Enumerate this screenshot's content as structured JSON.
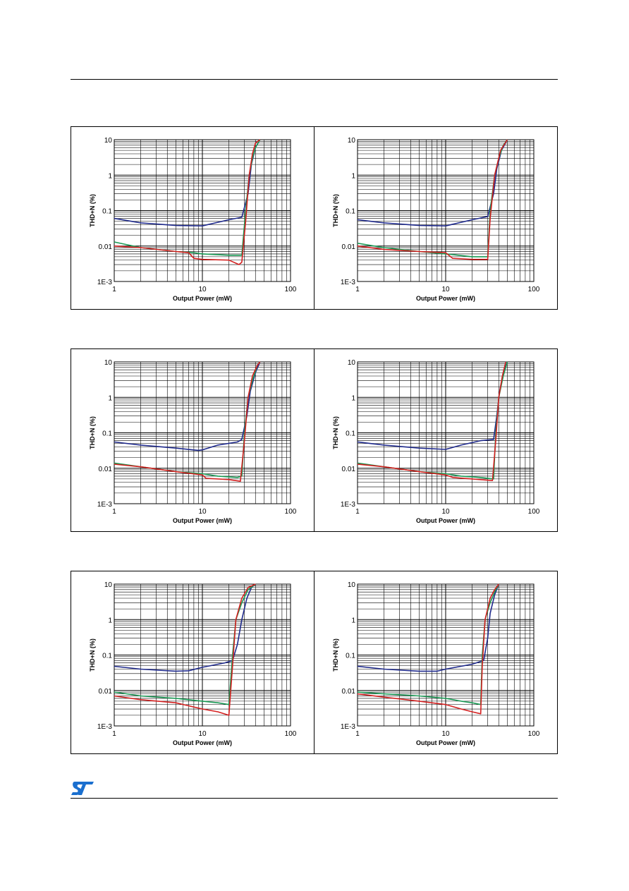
{
  "chart_data": [
    {
      "type": "line",
      "xlabel": "Output Power (mW)",
      "ylabel": "THD+N (%)",
      "xscale": "log",
      "yscale": "log",
      "xlim": [
        1,
        100
      ],
      "ylim": [
        0.001,
        10
      ],
      "x_ticks": [
        "1",
        "10",
        "100"
      ],
      "y_ticks": [
        "1E-3",
        "0.01",
        "0.1",
        "1",
        "10"
      ],
      "grid": true,
      "series": [
        {
          "color": "#1f2a8c",
          "points": [
            [
              1,
              0.06
            ],
            [
              2,
              0.045
            ],
            [
              5,
              0.038
            ],
            [
              10,
              0.037
            ],
            [
              20,
              0.055
            ],
            [
              28,
              0.065
            ],
            [
              33,
              0.3
            ],
            [
              36,
              2
            ],
            [
              40,
              6
            ],
            [
              45,
              10
            ]
          ]
        },
        {
          "color": "#1a9a55",
          "points": [
            [
              1,
              0.013
            ],
            [
              2,
              0.009
            ],
            [
              5,
              0.007
            ],
            [
              8,
              0.0065
            ],
            [
              10,
              0.006
            ],
            [
              20,
              0.0055
            ],
            [
              28,
              0.0055
            ],
            [
              31,
              0.1
            ],
            [
              34,
              1
            ],
            [
              37,
              3
            ],
            [
              40,
              6
            ],
            [
              45,
              10
            ]
          ]
        },
        {
          "color": "#d42020",
          "points": [
            [
              1,
              0.01
            ],
            [
              2,
              0.009
            ],
            [
              5,
              0.007
            ],
            [
              7,
              0.0065
            ],
            [
              8,
              0.0045
            ],
            [
              10,
              0.0042
            ],
            [
              20,
              0.004
            ],
            [
              26,
              0.003
            ],
            [
              28,
              0.0035
            ],
            [
              31,
              0.05
            ],
            [
              34,
              1
            ],
            [
              37,
              4
            ],
            [
              40,
              8
            ],
            [
              45,
              10
            ]
          ]
        }
      ]
    },
    {
      "type": "line",
      "xlabel": "Output Power (mW)",
      "ylabel": "THD+N (%)",
      "xscale": "log",
      "yscale": "log",
      "xlim": [
        1,
        100
      ],
      "ylim": [
        0.001,
        10
      ],
      "x_ticks": [
        "1",
        "10",
        "100"
      ],
      "y_ticks": [
        "1E-3",
        "0.01",
        "0.1",
        "1",
        "10"
      ],
      "grid": true,
      "series": [
        {
          "color": "#1f2a8c",
          "points": [
            [
              1,
              0.055
            ],
            [
              2,
              0.045
            ],
            [
              5,
              0.038
            ],
            [
              10,
              0.037
            ],
            [
              20,
              0.055
            ],
            [
              30,
              0.068
            ],
            [
              35,
              0.3
            ],
            [
              38,
              1.5
            ],
            [
              43,
              5
            ],
            [
              50,
              10
            ]
          ]
        },
        {
          "color": "#1a9a55",
          "points": [
            [
              1,
              0.012
            ],
            [
              2,
              0.009
            ],
            [
              5,
              0.007
            ],
            [
              10,
              0.006
            ],
            [
              20,
              0.005
            ],
            [
              30,
              0.005
            ],
            [
              32,
              0.1
            ],
            [
              36,
              1
            ],
            [
              40,
              3
            ],
            [
              45,
              7
            ],
            [
              50,
              10
            ]
          ]
        },
        {
          "color": "#d42020",
          "points": [
            [
              1,
              0.01
            ],
            [
              2,
              0.008
            ],
            [
              5,
              0.007
            ],
            [
              10,
              0.0065
            ],
            [
              12,
              0.0045
            ],
            [
              20,
              0.0042
            ],
            [
              30,
              0.0042
            ],
            [
              32,
              0.06
            ],
            [
              36,
              1
            ],
            [
              42,
              5
            ],
            [
              50,
              10
            ]
          ]
        }
      ]
    },
    {
      "type": "line",
      "xlabel": "Output Power (mW)",
      "ylabel": "THD+N (%)",
      "xscale": "log",
      "yscale": "log",
      "xlim": [
        1,
        100
      ],
      "ylim": [
        0.001,
        10
      ],
      "x_ticks": [
        "1",
        "10",
        "100"
      ],
      "y_ticks": [
        "1E-3",
        "0.01",
        "0.1",
        "1",
        "10"
      ],
      "grid": true,
      "series": [
        {
          "color": "#1f2a8c",
          "points": [
            [
              1,
              0.055
            ],
            [
              2,
              0.045
            ],
            [
              5,
              0.037
            ],
            [
              9,
              0.032
            ],
            [
              10,
              0.033
            ],
            [
              15,
              0.045
            ],
            [
              25,
              0.055
            ],
            [
              28,
              0.065
            ],
            [
              32,
              0.3
            ],
            [
              35,
              1.5
            ],
            [
              40,
              5
            ],
            [
              45,
              10
            ]
          ]
        },
        {
          "color": "#1a9a55",
          "points": [
            [
              1,
              0.014
            ],
            [
              2,
              0.011
            ],
            [
              5,
              0.008
            ],
            [
              10,
              0.007
            ],
            [
              15,
              0.006
            ],
            [
              25,
              0.0055
            ],
            [
              28,
              0.006
            ],
            [
              30,
              0.1
            ],
            [
              33,
              1
            ],
            [
              37,
              3
            ],
            [
              42,
              8
            ],
            [
              45,
              10
            ]
          ]
        },
        {
          "color": "#d42020",
          "points": [
            [
              1,
              0.013
            ],
            [
              2,
              0.011
            ],
            [
              5,
              0.008
            ],
            [
              10,
              0.0065
            ],
            [
              11,
              0.0052
            ],
            [
              20,
              0.0048
            ],
            [
              27,
              0.0043
            ],
            [
              30,
              0.06
            ],
            [
              33,
              1
            ],
            [
              37,
              4
            ],
            [
              42,
              8
            ],
            [
              45,
              10
            ]
          ]
        }
      ]
    },
    {
      "type": "line",
      "xlabel": "Output Power (mW)",
      "ylabel": "THD+N (%)",
      "xscale": "log",
      "yscale": "log",
      "xlim": [
        1,
        100
      ],
      "ylim": [
        0.001,
        10
      ],
      "x_ticks": [
        "1",
        "10",
        "100"
      ],
      "y_ticks": [
        "1E-3",
        "0.01",
        "0.1",
        "1",
        "10"
      ],
      "grid": true,
      "series": [
        {
          "color": "#1f2a8c",
          "points": [
            [
              1,
              0.055
            ],
            [
              2,
              0.045
            ],
            [
              5,
              0.037
            ],
            [
              10,
              0.034
            ],
            [
              15,
              0.045
            ],
            [
              25,
              0.06
            ],
            [
              35,
              0.065
            ],
            [
              38,
              0.3
            ],
            [
              41,
              1.5
            ],
            [
              45,
              5
            ],
            [
              50,
              10
            ]
          ]
        },
        {
          "color": "#1a9a55",
          "points": [
            [
              1,
              0.014
            ],
            [
              2,
              0.011
            ],
            [
              5,
              0.008
            ],
            [
              10,
              0.007
            ],
            [
              15,
              0.006
            ],
            [
              25,
              0.0055
            ],
            [
              35,
              0.005
            ],
            [
              37,
              0.1
            ],
            [
              40,
              1
            ],
            [
              45,
              4
            ],
            [
              50,
              10
            ]
          ]
        },
        {
          "color": "#d42020",
          "points": [
            [
              1,
              0.013
            ],
            [
              2,
              0.011
            ],
            [
              5,
              0.008
            ],
            [
              10,
              0.0065
            ],
            [
              12,
              0.0055
            ],
            [
              20,
              0.005
            ],
            [
              34,
              0.0045
            ],
            [
              37,
              0.06
            ],
            [
              40,
              1
            ],
            [
              44,
              4
            ],
            [
              48,
              10
            ]
          ]
        }
      ]
    },
    {
      "type": "line",
      "xlabel": "Output Power (mW)",
      "ylabel": "THD+N (%)",
      "xscale": "log",
      "yscale": "log",
      "xlim": [
        1,
        100
      ],
      "ylim": [
        0.001,
        10
      ],
      "x_ticks": [
        "1",
        "10",
        "100"
      ],
      "y_ticks": [
        "1E-3",
        "0.01",
        "0.1",
        "1",
        "10"
      ],
      "grid": true,
      "series": [
        {
          "color": "#1f2a8c",
          "points": [
            [
              1,
              0.048
            ],
            [
              2,
              0.04
            ],
            [
              5,
              0.035
            ],
            [
              7,
              0.036
            ],
            [
              10,
              0.045
            ],
            [
              18,
              0.06
            ],
            [
              22,
              0.07
            ],
            [
              25,
              0.2
            ],
            [
              28,
              1
            ],
            [
              32,
              4
            ],
            [
              36,
              8
            ],
            [
              40,
              10
            ]
          ]
        },
        {
          "color": "#1a9a55",
          "points": [
            [
              1,
              0.009
            ],
            [
              2,
              0.007
            ],
            [
              5,
              0.006
            ],
            [
              10,
              0.005
            ],
            [
              15,
              0.0045
            ],
            [
              20,
              0.004
            ],
            [
              22,
              0.1
            ],
            [
              24,
              1
            ],
            [
              28,
              3
            ],
            [
              33,
              7
            ],
            [
              40,
              10
            ]
          ]
        },
        {
          "color": "#d42020",
          "points": [
            [
              1,
              0.007
            ],
            [
              2,
              0.0055
            ],
            [
              5,
              0.0045
            ],
            [
              10,
              0.003
            ],
            [
              15,
              0.0025
            ],
            [
              20,
              0.002
            ],
            [
              22,
              0.05
            ],
            [
              24,
              1
            ],
            [
              28,
              4
            ],
            [
              33,
              8
            ],
            [
              40,
              10
            ]
          ]
        }
      ]
    },
    {
      "type": "line",
      "xlabel": "Output Power (mW)",
      "ylabel": "THD+N (%)",
      "xscale": "log",
      "yscale": "log",
      "xlim": [
        1,
        100
      ],
      "ylim": [
        0.001,
        10
      ],
      "x_ticks": [
        "1",
        "10",
        "100"
      ],
      "y_ticks": [
        "1E-3",
        "0.01",
        "0.1",
        "1",
        "10"
      ],
      "grid": true,
      "series": [
        {
          "color": "#1f2a8c",
          "points": [
            [
              1,
              0.048
            ],
            [
              2,
              0.04
            ],
            [
              5,
              0.035
            ],
            [
              8,
              0.035
            ],
            [
              10,
              0.04
            ],
            [
              20,
              0.055
            ],
            [
              27,
              0.07
            ],
            [
              30,
              0.3
            ],
            [
              32,
              1.5
            ],
            [
              36,
              5
            ],
            [
              40,
              10
            ]
          ]
        },
        {
          "color": "#1a9a55",
          "points": [
            [
              1,
              0.009
            ],
            [
              2,
              0.008
            ],
            [
              5,
              0.007
            ],
            [
              10,
              0.006
            ],
            [
              15,
              0.005
            ],
            [
              20,
              0.0045
            ],
            [
              25,
              0.004
            ],
            [
              26,
              0.1
            ],
            [
              28,
              1
            ],
            [
              32,
              3
            ],
            [
              36,
              6
            ],
            [
              40,
              10
            ]
          ]
        },
        {
          "color": "#d42020",
          "points": [
            [
              1,
              0.008
            ],
            [
              2,
              0.0065
            ],
            [
              5,
              0.005
            ],
            [
              10,
              0.004
            ],
            [
              15,
              0.003
            ],
            [
              20,
              0.0025
            ],
            [
              25,
              0.0022
            ],
            [
              26,
              0.05
            ],
            [
              28,
              1
            ],
            [
              32,
              4
            ],
            [
              36,
              7
            ],
            [
              40,
              10
            ]
          ]
        }
      ]
    }
  ]
}
